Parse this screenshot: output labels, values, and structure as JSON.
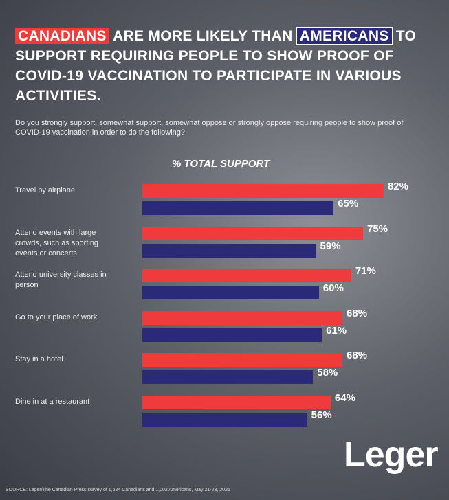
{
  "chart_data": {
    "type": "bar",
    "title_start": "ARE MORE LIKELY THAN",
    "title_end": "TO SUPPORT REQUIRING PEOPLE TO SHOW PROOF OF COVID-19 VACCINATION TO PARTICIPATE IN VARIOUS ACTIVITIES.",
    "subtitle": "Do you strongly support, somewhat support, somewhat oppose or strongly oppose requiring people to show proof of COVID-19 vaccination in order to do the following?",
    "axis_label": "% TOTAL SUPPORT",
    "categories": [
      "Travel by airplane",
      "Attend events with large crowds, such as sporting events or concerts",
      "Attend university classes in person",
      "Go to your place of work",
      "Stay in a hotel",
      "Dine in at a restaurant"
    ],
    "series": [
      {
        "name": "CANADIANS",
        "color": "#ef3b3b",
        "values": [
          82,
          75,
          71,
          68,
          68,
          64
        ],
        "value_labels": [
          "82%",
          "75%",
          "71%",
          "68%",
          "68%",
          "64%"
        ]
      },
      {
        "name": "AMERICANS",
        "color": "#2b2a78",
        "values": [
          65,
          59,
          60,
          61,
          58,
          56
        ],
        "value_labels": [
          "65%",
          "59%",
          "60%",
          "61%",
          "58%",
          "56%"
        ]
      }
    ],
    "xlim": [
      0,
      100
    ],
    "source": "SOURCE: Leger/The Canadian Press survey of 1,624 Canadians and 1,002 Americans, May 21-23, 2021",
    "logo": "Leger"
  }
}
